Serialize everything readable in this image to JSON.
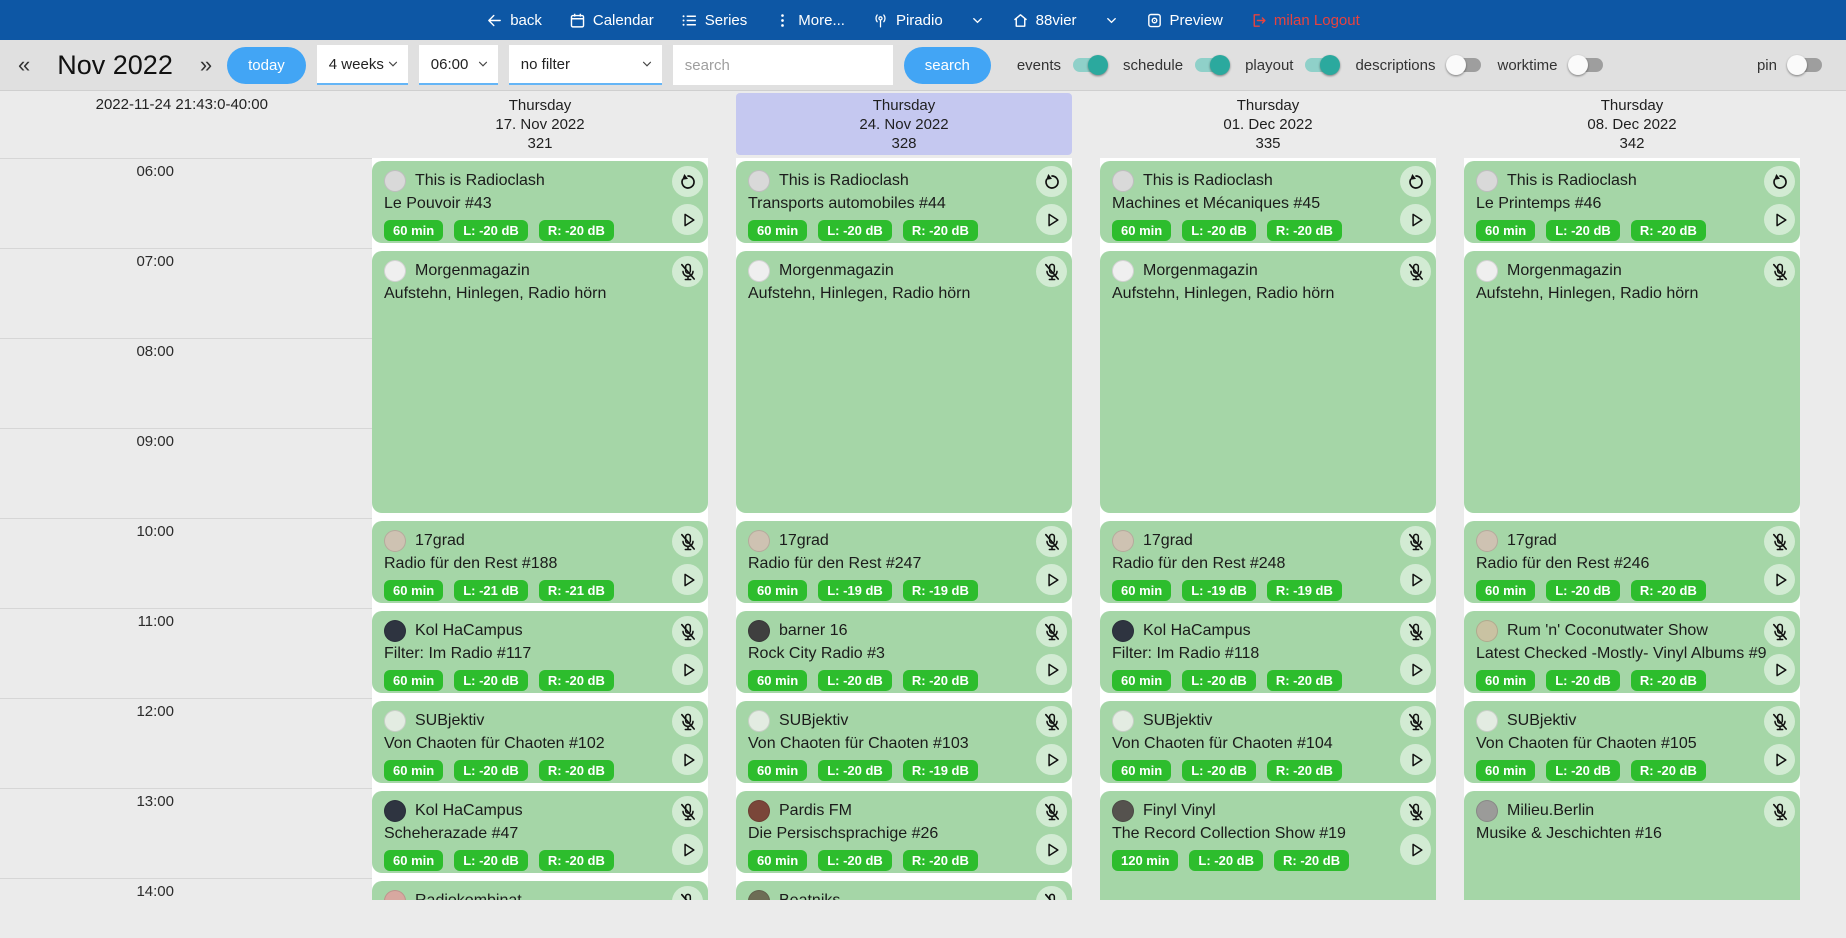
{
  "topbar": {
    "nav": [
      {
        "id": "back",
        "label": "back",
        "icon": "arrow-left"
      },
      {
        "id": "calendar",
        "label": "Calendar",
        "icon": "calendar"
      },
      {
        "id": "series",
        "label": "Series",
        "icon": "list"
      },
      {
        "id": "more",
        "label": "More...",
        "icon": "kebab"
      },
      {
        "id": "piradio",
        "label": "Piradio",
        "icon": "antenna",
        "chevron": true
      },
      {
        "id": "station",
        "label": "88vier",
        "icon": "home",
        "chevron": true
      },
      {
        "id": "preview",
        "label": "Preview",
        "icon": "preview"
      },
      {
        "id": "logout",
        "label": "milan Logout",
        "icon": "logout",
        "accent": "#e8433f"
      }
    ]
  },
  "toolbar": {
    "prev_label": "«",
    "month_label": "Nov 2022",
    "next_label": "»",
    "today_label": "today",
    "range_select": "4 weeks",
    "time_select": "06:00",
    "filter_select": "no filter",
    "search_placeholder": "search",
    "search_button": "search",
    "toggles": [
      {
        "label": "events",
        "on": true
      },
      {
        "label": "schedule",
        "on": true
      },
      {
        "label": "playout",
        "on": true
      },
      {
        "label": "descriptions",
        "on": false
      },
      {
        "label": "worktime",
        "on": false
      }
    ],
    "pin_toggle": {
      "label": "pin",
      "on": false
    }
  },
  "calendar": {
    "timestamp": "2022-11-24 21:43:0-40:00",
    "hours": [
      "06:00",
      "07:00",
      "08:00",
      "09:00",
      "10:00",
      "11:00",
      "12:00",
      "13:00",
      "14:00"
    ],
    "columns": [
      {
        "header": {
          "day": "Thursday",
          "date": "17. Nov 2022",
          "num": "321",
          "highlighted": false
        },
        "events": [
          {
            "show": "This is Radioclash",
            "episode": "Le Pouvoir #43",
            "start": 0,
            "span": 1,
            "badges": [
              "60 min",
              "L: -20 dB",
              "R: -20 dB"
            ],
            "icons": [
              "replay",
              "play"
            ],
            "avatar": "#d9d9d9"
          },
          {
            "show": "Morgenmagazin",
            "episode": "Aufstehn, Hinlegen, Radio hörn",
            "start": 1,
            "span": 3,
            "badges": [],
            "icons": [
              "mic"
            ],
            "avatar": "#efefef"
          },
          {
            "show": "17grad",
            "episode": "Radio für den Rest #188",
            "start": 4,
            "span": 1,
            "badges": [
              "60 min",
              "L: -21 dB",
              "R: -21 dB"
            ],
            "icons": [
              "mic",
              "play"
            ],
            "avatar": "#cec2b2"
          },
          {
            "show": "Kol HaCampus",
            "episode": "Filter: Im Radio #117",
            "start": 5,
            "span": 1,
            "badges": [
              "60 min",
              "L: -20 dB",
              "R: -20 dB"
            ],
            "icons": [
              "mic",
              "play"
            ],
            "avatar": "#2e3440"
          },
          {
            "show": "SUBjektiv",
            "episode": "Von Chaoten für Chaoten #102",
            "start": 6,
            "span": 1,
            "badges": [
              "60 min",
              "L: -20 dB",
              "R: -20 dB"
            ],
            "icons": [
              "mic",
              "play"
            ],
            "avatar": "#e3ece2"
          },
          {
            "show": "Kol HaCampus",
            "episode": "Scheherazade #47",
            "start": 7,
            "span": 1,
            "badges": [
              "60 min",
              "L: -20 dB",
              "R: -20 dB"
            ],
            "icons": [
              "mic",
              "play"
            ],
            "avatar": "#2e3440"
          },
          {
            "show": "Radiokombinat",
            "episode": "",
            "start": 8,
            "span": 1,
            "badges": [],
            "icons": [
              "mic"
            ],
            "avatar": "#d8a8a0"
          }
        ]
      },
      {
        "header": {
          "day": "Thursday",
          "date": "24. Nov 2022",
          "num": "328",
          "highlighted": true
        },
        "events": [
          {
            "show": "This is Radioclash",
            "episode": "Transports automobiles #44",
            "start": 0,
            "span": 1,
            "badges": [
              "60 min",
              "L: -20 dB",
              "R: -20 dB"
            ],
            "icons": [
              "replay",
              "play"
            ],
            "avatar": "#d9d9d9"
          },
          {
            "show": "Morgenmagazin",
            "episode": "Aufstehn, Hinlegen, Radio hörn",
            "start": 1,
            "span": 3,
            "badges": [],
            "icons": [
              "mic"
            ],
            "avatar": "#efefef"
          },
          {
            "show": "17grad",
            "episode": "Radio für den Rest #247",
            "start": 4,
            "span": 1,
            "badges": [
              "60 min",
              "L: -19 dB",
              "R: -19 dB"
            ],
            "icons": [
              "mic",
              "play"
            ],
            "avatar": "#cec2b2"
          },
          {
            "show": "barner 16",
            "episode": "Rock City Radio #3",
            "start": 5,
            "span": 1,
            "badges": [
              "60 min",
              "L: -20 dB",
              "R: -20 dB"
            ],
            "icons": [
              "mic",
              "play"
            ],
            "avatar": "#3f3f3f"
          },
          {
            "show": "SUBjektiv",
            "episode": "Von Chaoten für Chaoten #103",
            "start": 6,
            "span": 1,
            "badges": [
              "60 min",
              "L: -20 dB",
              "R: -19 dB"
            ],
            "icons": [
              "mic",
              "play"
            ],
            "avatar": "#e3ece2"
          },
          {
            "show": "Pardis FM",
            "episode": "Die Persischsprachige #26",
            "start": 7,
            "span": 1,
            "badges": [
              "60 min",
              "L: -20 dB",
              "R: -20 dB"
            ],
            "icons": [
              "mic",
              "play"
            ],
            "avatar": "#7a4639"
          },
          {
            "show": "Beatniks",
            "episode": "",
            "start": 8,
            "span": 1,
            "badges": [],
            "icons": [
              "mic"
            ],
            "avatar": "#6d6d55"
          }
        ]
      },
      {
        "header": {
          "day": "Thursday",
          "date": "01. Dec 2022",
          "num": "335",
          "highlighted": false
        },
        "events": [
          {
            "show": "This is Radioclash",
            "episode": "Machines et Mécaniques #45",
            "start": 0,
            "span": 1,
            "badges": [
              "60 min",
              "L: -20 dB",
              "R: -20 dB"
            ],
            "icons": [
              "replay",
              "play"
            ],
            "avatar": "#d9d9d9"
          },
          {
            "show": "Morgenmagazin",
            "episode": "Aufstehn, Hinlegen, Radio hörn",
            "start": 1,
            "span": 3,
            "badges": [],
            "icons": [
              "mic"
            ],
            "avatar": "#efefef"
          },
          {
            "show": "17grad",
            "episode": "Radio für den Rest #248",
            "start": 4,
            "span": 1,
            "badges": [
              "60 min",
              "L: -19 dB",
              "R: -19 dB"
            ],
            "icons": [
              "mic",
              "play"
            ],
            "avatar": "#cec2b2"
          },
          {
            "show": "Kol HaCampus",
            "episode": "Filter: Im Radio #118",
            "start": 5,
            "span": 1,
            "badges": [
              "60 min",
              "L: -20 dB",
              "R: -20 dB"
            ],
            "icons": [
              "mic",
              "play"
            ],
            "avatar": "#2e3440"
          },
          {
            "show": "SUBjektiv",
            "episode": "Von Chaoten für Chaoten #104",
            "start": 6,
            "span": 1,
            "badges": [
              "60 min",
              "L: -20 dB",
              "R: -20 dB"
            ],
            "icons": [
              "mic",
              "play"
            ],
            "avatar": "#e3ece2"
          },
          {
            "show": "Finyl Vinyl",
            "episode": "The Record Collection Show #19",
            "start": 7,
            "span": 2,
            "badges": [
              "120 min",
              "L: -20 dB",
              "R: -20 dB"
            ],
            "icons": [
              "mic",
              "play"
            ],
            "avatar": "#55524e"
          }
        ]
      },
      {
        "header": {
          "day": "Thursday",
          "date": "08. Dec 2022",
          "num": "342",
          "highlighted": false
        },
        "events": [
          {
            "show": "This is Radioclash",
            "episode": "Le Printemps #46",
            "start": 0,
            "span": 1,
            "badges": [
              "60 min",
              "L: -20 dB",
              "R: -20 dB"
            ],
            "icons": [
              "replay",
              "play"
            ],
            "avatar": "#d9d9d9"
          },
          {
            "show": "Morgenmagazin",
            "episode": "Aufstehn, Hinlegen, Radio hörn",
            "start": 1,
            "span": 3,
            "badges": [],
            "icons": [
              "mic"
            ],
            "avatar": "#efefef"
          },
          {
            "show": "17grad",
            "episode": "Radio für den Rest #246",
            "start": 4,
            "span": 1,
            "badges": [
              "60 min",
              "L: -20 dB",
              "R: -20 dB"
            ],
            "icons": [
              "mic",
              "play"
            ],
            "avatar": "#cec2b2"
          },
          {
            "show": "Rum 'n' Coconutwater Show",
            "episode": "Latest Checked -Mostly- Vinyl Albums #9",
            "start": 5,
            "span": 1,
            "badges": [
              "60 min",
              "L: -20 dB",
              "R: -20 dB"
            ],
            "icons": [
              "mic",
              "play"
            ],
            "avatar": "#c9c2a2"
          },
          {
            "show": "SUBjektiv",
            "episode": "Von Chaoten für Chaoten #105",
            "start": 6,
            "span": 1,
            "badges": [
              "60 min",
              "L: -20 dB",
              "R: -20 dB"
            ],
            "icons": [
              "mic",
              "play"
            ],
            "avatar": "#e3ece2"
          },
          {
            "show": "Milieu.Berlin",
            "episode": "Musike & Jeschichten #16",
            "start": 7,
            "span": 2,
            "badges": [],
            "icons": [
              "mic"
            ],
            "avatar": "#9b9b99"
          }
        ]
      }
    ]
  },
  "colors": {
    "topbar_blue": "#0d57a5",
    "accent_blue": "#42a5f5",
    "card_green": "#a5d6a7",
    "badge_green": "#2dbd2d",
    "highlight_purple": "#c5c8f0",
    "toggle_on_teal": "#2ba99e",
    "logout_red": "#e8433f"
  }
}
